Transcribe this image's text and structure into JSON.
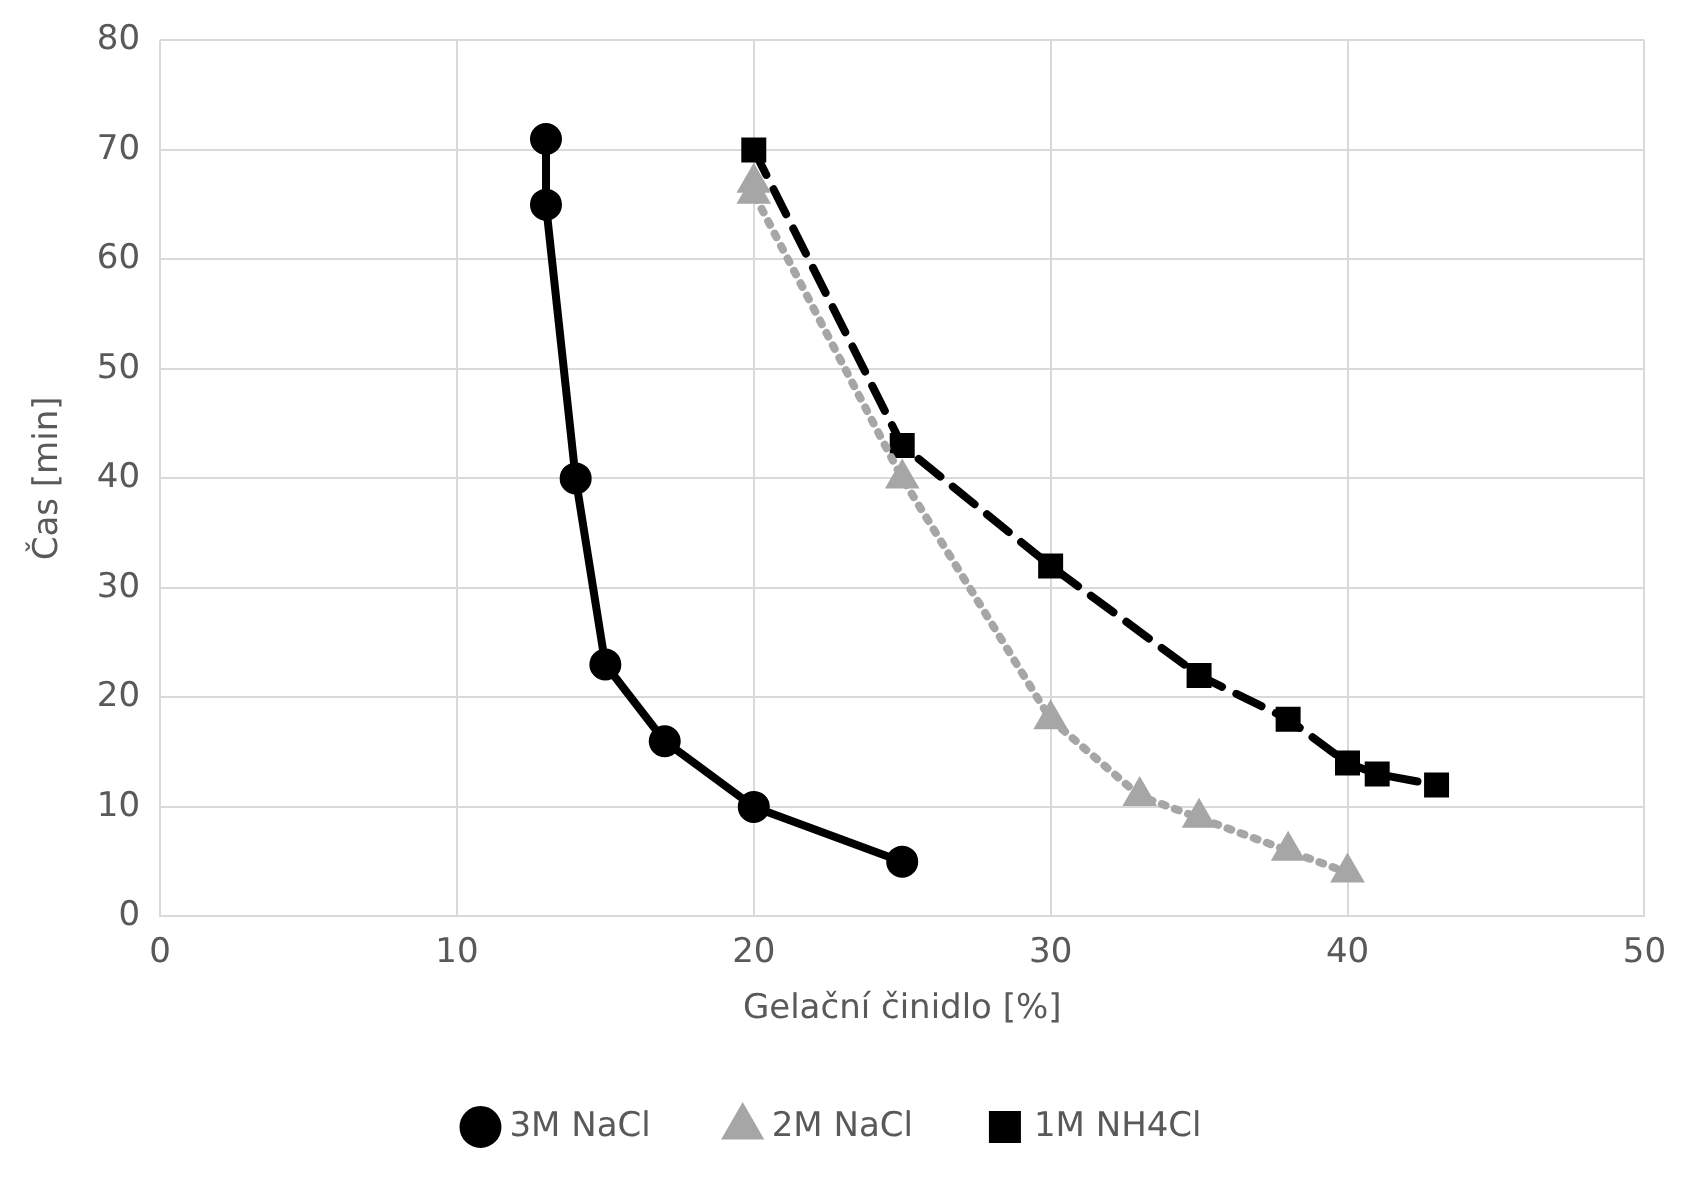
{
  "chart_data": {
    "type": "line",
    "xlabel": "Gelační činidlo [%]",
    "ylabel": "Čas [min]",
    "xlim": [
      0,
      50
    ],
    "xticks": [
      0,
      10,
      20,
      30,
      40,
      50
    ],
    "ylim": [
      0,
      80
    ],
    "yticks": [
      0,
      10,
      20,
      30,
      40,
      50,
      60,
      70,
      80
    ],
    "grid": true,
    "legend": "bottom",
    "series": [
      {
        "name": "3M NaCl",
        "color": "#000000",
        "marker": "circle",
        "line_style": "solid",
        "x": [
          13,
          13,
          14,
          15,
          17,
          20,
          25
        ],
        "values": [
          71,
          65,
          40,
          23,
          16,
          10,
          5
        ]
      },
      {
        "name": "2M NaCl",
        "color": "#a6a6a6",
        "marker": "triangle",
        "line_style": "dotted",
        "x": [
          20,
          20,
          25,
          30,
          33,
          35,
          38,
          40
        ],
        "values": [
          67,
          66,
          40,
          18,
          11,
          9,
          6,
          4
        ]
      },
      {
        "name": "1M NH4Cl",
        "color": "#000000",
        "marker": "square",
        "line_style": "dashed",
        "x": [
          20,
          25,
          30,
          35,
          38,
          40,
          41,
          43
        ],
        "values": [
          70,
          43,
          32,
          22,
          18,
          14,
          13,
          12
        ]
      }
    ]
  }
}
